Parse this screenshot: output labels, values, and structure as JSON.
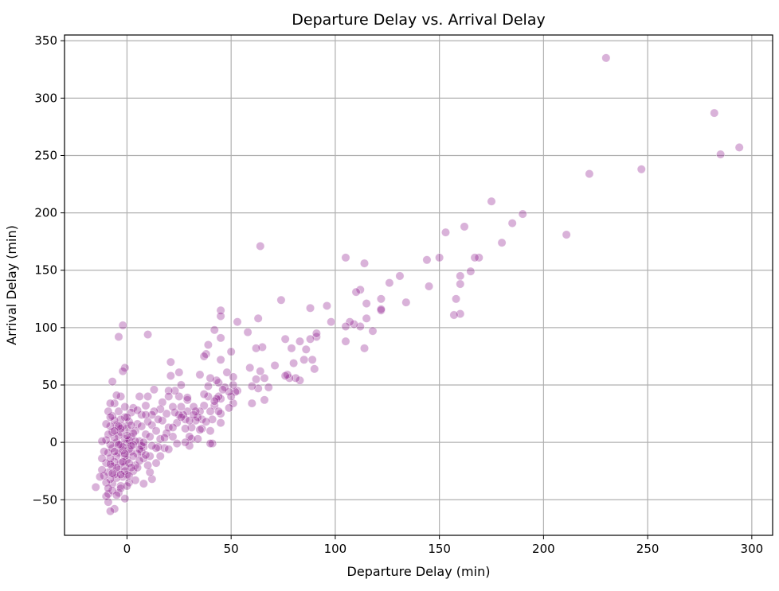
{
  "chart_data": {
    "type": "scatter",
    "title": "Departure Delay vs. Arrival Delay",
    "xlabel": "Departure Delay (min)",
    "ylabel": "Arrival Delay (min)",
    "xlim": [
      -30,
      310
    ],
    "ylim": [
      -81,
      355
    ],
    "xticks": [
      0,
      50,
      100,
      150,
      200,
      250,
      300
    ],
    "yticks": [
      -50,
      0,
      50,
      100,
      150,
      200,
      250,
      300,
      350
    ],
    "xtick_labels": [
      "0",
      "50",
      "100",
      "150",
      "200",
      "250",
      "300"
    ],
    "ytick_labels": [
      "−50",
      "0",
      "50",
      "100",
      "150",
      "200",
      "250",
      "300",
      "350"
    ],
    "grid": true,
    "legend": "none",
    "marker_color": "#800080",
    "marker_alpha": 0.3,
    "points": [
      [
        230,
        335
      ],
      [
        282,
        287
      ],
      [
        294,
        257
      ],
      [
        285,
        251
      ],
      [
        247,
        238
      ],
      [
        222,
        234
      ],
      [
        211,
        181
      ],
      [
        190,
        199
      ],
      [
        185,
        191
      ],
      [
        180,
        174
      ],
      [
        175,
        210
      ],
      [
        169,
        161
      ],
      [
        167,
        161
      ],
      [
        165,
        149
      ],
      [
        162,
        188
      ],
      [
        160,
        145
      ],
      [
        160,
        138
      ],
      [
        160,
        112
      ],
      [
        158,
        125
      ],
      [
        157,
        111
      ],
      [
        153,
        183
      ],
      [
        150,
        161
      ],
      [
        145,
        136
      ],
      [
        144,
        159
      ],
      [
        134,
        122
      ],
      [
        131,
        145
      ],
      [
        126,
        139
      ],
      [
        122,
        125
      ],
      [
        122,
        115
      ],
      [
        122,
        116
      ],
      [
        118,
        97
      ],
      [
        115,
        108
      ],
      [
        115,
        121
      ],
      [
        114,
        156
      ],
      [
        114,
        82
      ],
      [
        112,
        133
      ],
      [
        112,
        101
      ],
      [
        110,
        131
      ],
      [
        109,
        103
      ],
      [
        107,
        105
      ],
      [
        105,
        161
      ],
      [
        105,
        101
      ],
      [
        105,
        88
      ],
      [
        98,
        105
      ],
      [
        96,
        119
      ],
      [
        91,
        92
      ],
      [
        91,
        95
      ],
      [
        90,
        64
      ],
      [
        88,
        117
      ],
      [
        88,
        90
      ],
      [
        89,
        72
      ],
      [
        86,
        81
      ],
      [
        85,
        72
      ],
      [
        83,
        54
      ],
      [
        83,
        88
      ],
      [
        81,
        56
      ],
      [
        80,
        69
      ],
      [
        78,
        56
      ],
      [
        79,
        82
      ],
      [
        77,
        59
      ],
      [
        76,
        58
      ],
      [
        76,
        90
      ],
      [
        74,
        124
      ],
      [
        71,
        67
      ],
      [
        68,
        48
      ],
      [
        66,
        56
      ],
      [
        66,
        37
      ],
      [
        65,
        83
      ],
      [
        64,
        171
      ],
      [
        64,
        62
      ],
      [
        63,
        47
      ],
      [
        63,
        108
      ],
      [
        62,
        55
      ],
      [
        62,
        82
      ],
      [
        60,
        49
      ],
      [
        60,
        34
      ],
      [
        59,
        65
      ],
      [
        58,
        96
      ],
      [
        53,
        105
      ],
      [
        53,
        45
      ],
      [
        52,
        44
      ],
      [
        51,
        34
      ],
      [
        51,
        50
      ],
      [
        50,
        79
      ],
      [
        51,
        57
      ],
      [
        50,
        40
      ],
      [
        49,
        44
      ],
      [
        49,
        30
      ],
      [
        48,
        61
      ],
      [
        47,
        48
      ],
      [
        45,
        115
      ],
      [
        45,
        110
      ],
      [
        45,
        91
      ],
      [
        45,
        72
      ],
      [
        45,
        38
      ],
      [
        44,
        40
      ],
      [
        45,
        17
      ],
      [
        45,
        25
      ],
      [
        44,
        52
      ],
      [
        43,
        38
      ],
      [
        42,
        32
      ],
      [
        43,
        54
      ],
      [
        42,
        98
      ],
      [
        41,
        -1
      ],
      [
        40,
        56
      ],
      [
        41,
        20
      ],
      [
        40,
        27
      ],
      [
        40,
        -1
      ],
      [
        39,
        49
      ],
      [
        39,
        40
      ],
      [
        39,
        85
      ],
      [
        38,
        77
      ],
      [
        37,
        75
      ],
      [
        37,
        42
      ],
      [
        37,
        32
      ],
      [
        36,
        20
      ],
      [
        36,
        12
      ],
      [
        35,
        59
      ],
      [
        35,
        11
      ],
      [
        35,
        27
      ],
      [
        34,
        22
      ],
      [
        33,
        27
      ],
      [
        33,
        19
      ],
      [
        32,
        31
      ],
      [
        31,
        3
      ],
      [
        31,
        13
      ],
      [
        30,
        5
      ],
      [
        30,
        -3
      ],
      [
        29,
        27
      ],
      [
        29,
        37
      ],
      [
        29,
        39
      ],
      [
        28,
        20
      ],
      [
        28,
        0
      ],
      [
        27,
        24
      ],
      [
        26,
        50
      ],
      [
        26,
        31
      ],
      [
        25,
        61
      ],
      [
        25,
        40
      ],
      [
        25,
        24
      ],
      [
        24,
        17
      ],
      [
        23,
        45
      ],
      [
        23,
        26
      ],
      [
        22,
        5
      ],
      [
        22,
        31
      ],
      [
        21,
        58
      ],
      [
        21,
        70
      ],
      [
        20,
        13
      ],
      [
        20,
        45
      ],
      [
        20,
        40
      ],
      [
        19,
        25
      ],
      [
        19,
        8
      ],
      [
        18,
        -5
      ],
      [
        17,
        35
      ],
      [
        17,
        19
      ],
      [
        16,
        29
      ],
      [
        16,
        3
      ],
      [
        15,
        -4
      ],
      [
        15,
        20
      ],
      [
        14,
        -5
      ],
      [
        14,
        -18
      ],
      [
        13,
        46
      ],
      [
        13,
        27
      ],
      [
        12,
        15
      ],
      [
        12,
        -3
      ],
      [
        12,
        -32
      ],
      [
        11,
        -12
      ],
      [
        11,
        -26
      ],
      [
        10,
        94
      ],
      [
        10,
        40
      ],
      [
        10,
        18
      ],
      [
        10,
        -20
      ],
      [
        9,
        32
      ],
      [
        9,
        7
      ],
      [
        8,
        -4
      ],
      [
        8,
        -14
      ],
      [
        8,
        -36
      ],
      [
        7,
        24
      ],
      [
        7,
        -8
      ],
      [
        6,
        1
      ],
      [
        6,
        40
      ],
      [
        5,
        16
      ],
      [
        5,
        -10
      ],
      [
        4,
        -20
      ],
      [
        4,
        10
      ],
      [
        3,
        30
      ],
      [
        3,
        -25
      ],
      [
        2,
        26
      ],
      [
        2,
        5
      ],
      [
        2,
        -8
      ],
      [
        1,
        18
      ],
      [
        1,
        -6
      ],
      [
        1,
        -35
      ],
      [
        0,
        12
      ],
      [
        0,
        0
      ],
      [
        0,
        -15
      ],
      [
        0,
        -28
      ],
      [
        -1,
        65
      ],
      [
        -1,
        22
      ],
      [
        -1,
        3
      ],
      [
        -1,
        -12
      ],
      [
        -1,
        -21
      ],
      [
        -1,
        -49
      ],
      [
        -2,
        102
      ],
      [
        -2,
        62
      ],
      [
        -2,
        14
      ],
      [
        -2,
        -7
      ],
      [
        -2,
        -30
      ],
      [
        -3,
        40
      ],
      [
        -3,
        20
      ],
      [
        -3,
        9
      ],
      [
        -3,
        -2
      ],
      [
        -3,
        -18
      ],
      [
        -3,
        -38
      ],
      [
        -4,
        92
      ],
      [
        -4,
        27
      ],
      [
        -4,
        6
      ],
      [
        -4,
        -9
      ],
      [
        -4,
        -24
      ],
      [
        -4,
        -44
      ],
      [
        -5,
        41
      ],
      [
        -5,
        15
      ],
      [
        -5,
        0
      ],
      [
        -5,
        -12
      ],
      [
        -5,
        -31
      ],
      [
        -6,
        34
      ],
      [
        -6,
        19
      ],
      [
        -6,
        4
      ],
      [
        -6,
        -17
      ],
      [
        -6,
        -28
      ],
      [
        -6,
        -58
      ],
      [
        -7,
        53
      ],
      [
        -7,
        23
      ],
      [
        -7,
        9
      ],
      [
        -7,
        -5
      ],
      [
        -7,
        -21
      ],
      [
        -7,
        -36
      ],
      [
        -8,
        34
      ],
      [
        -8,
        14
      ],
      [
        -8,
        -2
      ],
      [
        -8,
        -14
      ],
      [
        -8,
        -32
      ],
      [
        -8,
        -60
      ],
      [
        -9,
        27
      ],
      [
        -9,
        7
      ],
      [
        -9,
        -9
      ],
      [
        -9,
        -26
      ],
      [
        -9,
        -52
      ],
      [
        -10,
        16
      ],
      [
        -10,
        2
      ],
      [
        -10,
        -18
      ],
      [
        -10,
        -35
      ],
      [
        -10,
        -47
      ],
      [
        -11,
        -8
      ],
      [
        -11,
        -29
      ],
      [
        -12,
        1
      ],
      [
        -12,
        -14
      ],
      [
        -12,
        -24
      ],
      [
        -13,
        -30
      ],
      [
        -15,
        -39
      ],
      [
        -9,
        -45
      ],
      [
        -7,
        -42
      ],
      [
        -5,
        -22
      ],
      [
        -3,
        -40
      ],
      [
        -1,
        -25
      ],
      [
        1,
        -18
      ],
      [
        3,
        -12
      ],
      [
        5,
        -22
      ],
      [
        7,
        -3
      ],
      [
        9,
        -11
      ],
      [
        11,
        5
      ],
      [
        12,
        24
      ],
      [
        14,
        10
      ],
      [
        16,
        -12
      ],
      [
        18,
        4
      ],
      [
        20,
        -6
      ],
      [
        22,
        13
      ],
      [
        24,
        -1
      ],
      [
        26,
        22
      ],
      [
        28,
        12
      ],
      [
        30,
        19
      ],
      [
        32,
        24
      ],
      [
        34,
        3
      ],
      [
        38,
        18
      ],
      [
        40,
        10
      ],
      [
        42,
        36
      ],
      [
        44,
        27
      ],
      [
        46,
        46
      ],
      [
        3,
        8
      ],
      [
        -2,
        -4
      ],
      [
        0,
        22
      ],
      [
        1,
        2
      ],
      [
        -4,
        -2
      ],
      [
        2,
        -22
      ],
      [
        -6,
        -8
      ],
      [
        4,
        1
      ],
      [
        -1,
        -10
      ],
      [
        6,
        -6
      ],
      [
        -3,
        12
      ],
      [
        7,
        14
      ],
      [
        -8,
        -19
      ],
      [
        9,
        24
      ],
      [
        -5,
        -46
      ],
      [
        0,
        -38
      ],
      [
        5,
        28
      ],
      [
        -7,
        -27
      ],
      [
        2,
        15
      ],
      [
        -2,
        -17
      ],
      [
        3,
        -2
      ],
      [
        -9,
        -40
      ],
      [
        6,
        -16
      ],
      [
        -4,
        14
      ],
      [
        1,
        -29
      ],
      [
        -6,
        10
      ],
      [
        8,
        0
      ],
      [
        -3,
        -28
      ],
      [
        0,
        6
      ],
      [
        4,
        -33
      ],
      [
        -8,
        22
      ],
      [
        2,
        -3
      ],
      [
        -1,
        31
      ]
    ]
  }
}
